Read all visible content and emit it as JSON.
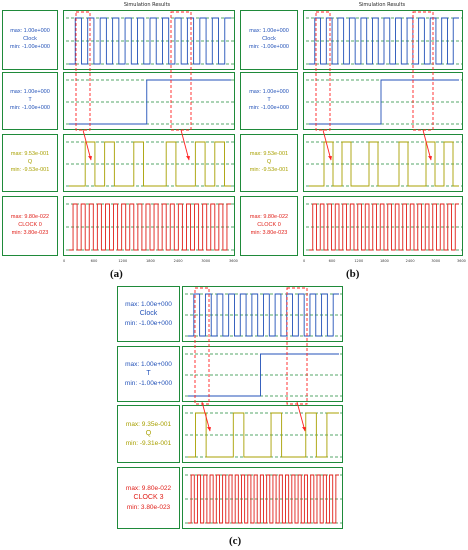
{
  "colors": {
    "border": "#1f8a3a",
    "blue": "#2352b8",
    "yellow": "#a8a000",
    "red": "#e0201a",
    "dashed_green": "#1f8a3a",
    "dashed_red": "#ff2020"
  },
  "panels": [
    {
      "id": "a",
      "title": "Simulation Results",
      "caption": "(a)",
      "ticks": [
        "0",
        "600",
        "1200",
        "1800",
        "2400",
        "3000",
        "3600"
      ],
      "signals": [
        {
          "max": "max: 1.00e+000",
          "name": "Clock",
          "min": "min: -1.00e+000",
          "color": "blue"
        },
        {
          "max": "max: 1.00e+000",
          "name": "T",
          "min": "min: -1.00e+000",
          "color": "blue"
        },
        {
          "max": "max: 9.53e-001",
          "name": "Q",
          "min": "min: -9.53e-001",
          "color": "yellow"
        },
        {
          "max": "max: 9.80e-022",
          "name": "CLOCK 0",
          "min": "min: 3.80e-023",
          "color": "red"
        }
      ]
    },
    {
      "id": "b",
      "title": "Simulation Results",
      "caption": "(b)",
      "ticks": [
        "0",
        "600",
        "1200",
        "1800",
        "2400",
        "3000",
        "3600"
      ],
      "signals": [
        {
          "max": "max: 1.00e+000",
          "name": "Clock",
          "min": "min: -1.00e+000",
          "color": "blue"
        },
        {
          "max": "max: 1.00e+000",
          "name": "T",
          "min": "min: -1.00e+000",
          "color": "blue"
        },
        {
          "max": "max: 9.53e-001",
          "name": "Q",
          "min": "min: -9.53e-001",
          "color": "yellow"
        },
        {
          "max": "max: 9.80e-022",
          "name": "CLOCK 0",
          "min": "min: 3.80e-023",
          "color": "red"
        }
      ]
    },
    {
      "id": "c",
      "title": "",
      "caption": "(c)",
      "ticks": [],
      "signals": [
        {
          "max": "max: 1.00e+000",
          "name": "Clock",
          "min": "min: -1.00e+000",
          "color": "blue"
        },
        {
          "max": "max: 1.00e+000",
          "name": "T",
          "min": "min: -1.00e+000",
          "color": "blue"
        },
        {
          "max": "max: 9.35e-001",
          "name": "Q",
          "min": "min: -9.31e-001",
          "color": "yellow"
        },
        {
          "max": "max: 9.80e-022",
          "name": "CLOCK 3",
          "min": "min: 3.80e-023",
          "color": "red"
        }
      ]
    }
  ]
}
